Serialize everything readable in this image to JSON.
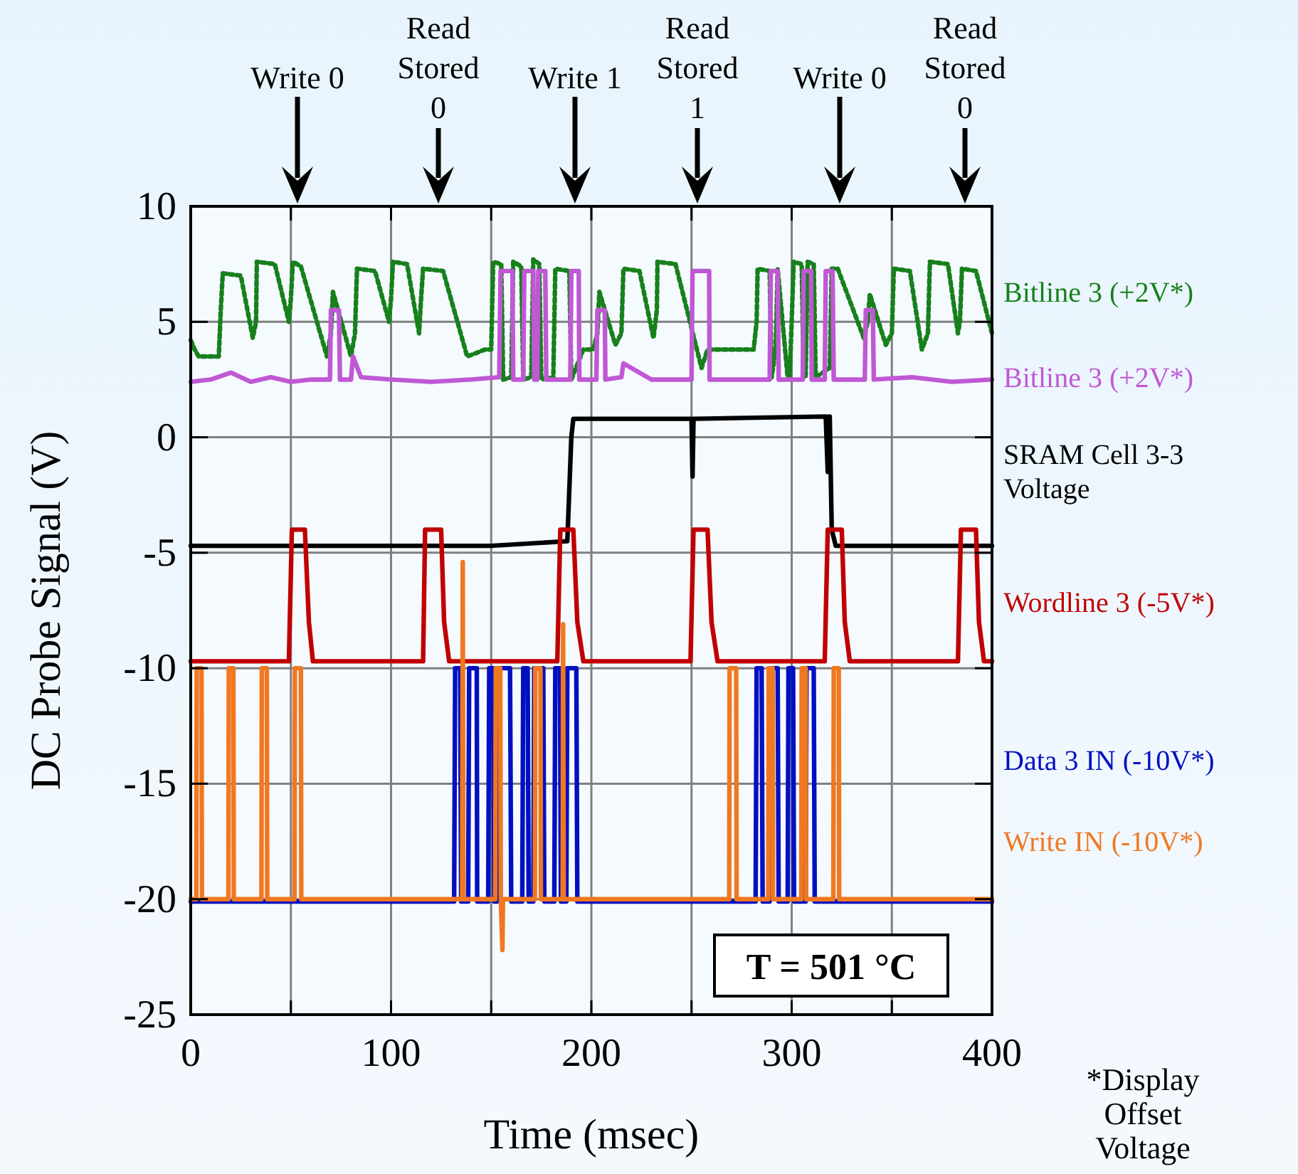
{
  "chart_data": {
    "type": "line",
    "xlabel": "Time (msec)",
    "ylabel": "DC Probe Signal (V)",
    "xlim": [
      0,
      400
    ],
    "xticks": [
      0,
      {
        "value": 50,
        "label": null
      },
      100,
      {
        "value": 150,
        "label": null
      },
      200,
      {
        "value": 250,
        "label": null
      },
      300,
      {
        "value": 350,
        "label": null
      },
      400
    ],
    "ylim": [
      -25,
      10
    ],
    "yticks": [
      -25,
      -20,
      -15,
      -10,
      -5,
      0,
      5,
      10
    ],
    "grid": true,
    "legend": "right",
    "marker": "none",
    "line_style": "solid",
    "series": [
      {
        "name": "Bitline 3 (+2V*)",
        "color": "#17801c",
        "line_style": "dotted",
        "x": [
          0,
          2,
          4,
          14,
          15,
          16,
          25,
          31,
          32.6,
          33,
          42,
          49,
          50,
          51,
          55,
          68,
          70,
          71,
          80,
          82,
          83,
          92,
          99,
          100,
          101,
          108,
          114,
          115,
          116,
          126,
          138,
          147,
          150,
          151,
          155,
          156,
          160,
          161,
          165,
          166,
          170,
          171,
          174,
          175,
          181,
          182,
          189,
          190,
          196,
          201,
          203,
          204,
          212,
          215,
          216,
          224,
          231,
          232.7,
          233,
          242,
          255,
          258,
          281,
          282.5,
          283,
          289,
          290,
          292,
          293,
          298,
          299,
          300,
          301,
          305,
          306,
          307,
          308,
          311,
          312,
          319,
          320,
          323,
          336,
          338,
          339,
          347,
          350,
          351,
          359,
          365,
          368,
          369,
          378,
          383,
          384,
          385,
          392,
          400
        ],
        "values": [
          4.2,
          3.8,
          3.5,
          3.5,
          5.5,
          7.1,
          7.0,
          4.3,
          5,
          7.6,
          7.5,
          5,
          6,
          7.6,
          7.4,
          3.5,
          4.5,
          6.3,
          3.5,
          4.5,
          7.3,
          7.2,
          5,
          6,
          7.6,
          7.5,
          4.5,
          6,
          7.3,
          7.2,
          3.5,
          3.8,
          3.8,
          7.6,
          7.5,
          2.5,
          2.6,
          7.6,
          7.4,
          2.5,
          2.6,
          7.7,
          7.5,
          2.5,
          2.6,
          7.3,
          7.2,
          2.5,
          3.8,
          3.8,
          4.5,
          6.3,
          4,
          4.5,
          7.3,
          7.2,
          4.3,
          5.5,
          7.6,
          7.5,
          3,
          3.8,
          3.8,
          5,
          7.3,
          7.2,
          2.6,
          3.8,
          7.3,
          2.6,
          2.6,
          5,
          7.6,
          7.5,
          2.6,
          2.6,
          7.6,
          7.5,
          2.6,
          3,
          7.3,
          7.3,
          4.3,
          5,
          6.2,
          4,
          4.5,
          7.3,
          7.2,
          3.8,
          4.5,
          7.6,
          7.5,
          4.5,
          5,
          7.3,
          7.2,
          4.5
        ]
      },
      {
        "name": "Bitline 3 (+2V*)",
        "color": "#c058d4",
        "x": [
          0,
          10,
          20,
          30,
          40,
          50,
          60,
          69.5,
          70,
          74,
          74.5,
          80,
          81,
          85,
          100,
          120,
          140,
          154,
          154.7,
          160.6,
          161,
          166,
          166.5,
          171,
          171.5,
          173,
          173.5,
          177,
          177.5,
          189.5,
          190,
          193.7,
          194,
          202.5,
          203,
          206.7,
          207,
          215,
          216,
          230,
          250,
          250.5,
          258.8,
          259,
          289,
          289.6,
          293,
          293.5,
          305.5,
          306,
          309.7,
          310,
          316.5,
          317,
          320.4,
          321,
          336.5,
          337,
          340.5,
          341,
          360,
          380,
          400
        ],
        "values": [
          2.4,
          2.5,
          2.8,
          2.4,
          2.6,
          2.4,
          2.5,
          2.5,
          5.5,
          5.5,
          2.5,
          2.5,
          3.5,
          2.6,
          2.5,
          2.4,
          2.5,
          2.6,
          7.2,
          7.2,
          2.5,
          2.5,
          7.2,
          7.2,
          2.5,
          2.5,
          7.2,
          7.2,
          2.5,
          2.5,
          7.2,
          7.2,
          2.5,
          2.5,
          5.5,
          5.5,
          2.5,
          2.6,
          3.2,
          2.5,
          2.5,
          7.2,
          7.2,
          2.5,
          2.5,
          7.2,
          7.2,
          2.5,
          2.5,
          7.2,
          7.2,
          2.5,
          2.5,
          7.2,
          7.2,
          2.5,
          2.5,
          5.5,
          5.5,
          2.5,
          2.6,
          2.4,
          2.5
        ]
      },
      {
        "name": "SRAM Cell 3-3\nVoltage",
        "color": "#000000",
        "x": [
          0,
          50,
          100,
          150,
          188,
          190,
          191,
          250,
          250.5,
          251,
          317,
          318,
          318.5,
          319,
          320,
          322,
          360,
          400
        ],
        "values": [
          -4.7,
          -4.7,
          -4.7,
          -4.7,
          -4.5,
          0,
          0.8,
          0.8,
          -1.7,
          0.8,
          0.9,
          -1.5,
          0.9,
          0.9,
          -4,
          -4.7,
          -4.7,
          -4.7
        ]
      },
      {
        "name": "Wordline 3 (-5V*)",
        "color": "#c00000",
        "x": [
          0,
          49,
          50.5,
          57,
          59,
          61,
          116,
          117,
          125,
          126.5,
          129,
          183,
          184.5,
          191,
          193,
          196,
          249.5,
          251,
          258,
          260,
          263,
          316.5,
          318,
          325,
          326.5,
          329,
          383,
          384.5,
          392,
          393.5,
          396,
          400
        ],
        "values": [
          -9.7,
          -9.7,
          -4,
          -4,
          -8,
          -9.7,
          -9.7,
          -4,
          -4,
          -8,
          -9.7,
          -9.7,
          -4,
          -4,
          -8,
          -9.7,
          -9.7,
          -4,
          -4,
          -8,
          -9.7,
          -9.7,
          -4,
          -4,
          -8,
          -9.7,
          -9.7,
          -4,
          -4,
          -8,
          -9.7,
          -9.7
        ]
      },
      {
        "name": "Data 3 IN (-10V*)",
        "color": "#0010c0",
        "x": [
          0,
          131.5,
          132,
          134.5,
          135,
          138.5,
          139,
          142.8,
          143,
          148.5,
          149,
          151,
          151.5,
          153,
          153.5,
          159.4,
          160,
          165.5,
          166,
          168.2,
          168.7,
          171,
          171.5,
          176,
          176.5,
          181.5,
          182,
          184.3,
          184.8,
          187.5,
          188,
          192.5,
          193,
          282,
          282.5,
          285,
          285.5,
          289,
          289.6,
          293,
          293.5,
          298,
          298.4,
          300.7,
          301.2,
          307,
          307.4,
          311,
          311.5,
          400
        ],
        "values": [
          -20.1,
          -20.1,
          -10,
          -10,
          -20.1,
          -20.1,
          -10,
          -10,
          -20.1,
          -20.1,
          -10,
          -10,
          -20.1,
          -20.1,
          -10,
          -10,
          -20.1,
          -20.1,
          -10,
          -10,
          -20.1,
          -20.1,
          -10,
          -10,
          -20.1,
          -20.1,
          -10,
          -10,
          -20.1,
          -20.1,
          -10,
          -10,
          -20.1,
          -20.1,
          -10,
          -10,
          -20.1,
          -20.1,
          -10,
          -10,
          -20.1,
          -20.1,
          -10,
          -10,
          -20.1,
          -20.1,
          -10,
          -10,
          -20.1,
          -20.1
        ]
      },
      {
        "name": "Write IN (-10V*)",
        "color": "#f07820",
        "x": [
          0,
          2.8,
          3,
          5.4,
          5.6,
          18.8,
          19,
          21.3,
          21.5,
          35.3,
          35.5,
          38,
          38.2,
          51.8,
          52,
          55,
          55.2,
          135.5,
          135.8,
          136.1,
          152,
          152.3,
          154.5,
          154.8,
          155.6,
          155.9,
          171.8,
          172,
          174.6,
          174.8,
          185.7,
          185.9,
          186.2,
          268.8,
          269,
          272.3,
          272.5,
          288.3,
          288.5,
          290.5,
          290.7,
          304.8,
          305,
          307,
          307.2,
          320.8,
          321,
          323.5,
          323.7,
          400
        ],
        "values": [
          -20,
          -20,
          -10,
          -10,
          -20,
          -20,
          -10,
          -10,
          -20,
          -20,
          -10,
          -10,
          -20,
          -20,
          -10,
          -10,
          -20,
          -20,
          -5.4,
          -20,
          -20,
          -10,
          -10,
          -20,
          -22.2,
          -20,
          -20,
          -10,
          -10,
          -20,
          -20,
          -8.1,
          -20,
          -20,
          -10,
          -10,
          -20,
          -20,
          -10,
          -10,
          -20,
          -20,
          -10,
          -10,
          -20,
          -20,
          -10,
          -10,
          -20,
          -20
        ]
      }
    ],
    "annotations": [
      "Write 0",
      "Read\nStored\n0",
      "Write 1",
      "Read\nStored\n1",
      "Write 0",
      "Read\nStored\n0",
      "T = 501 °C",
      "*Display\nOffset\nVoltage"
    ]
  }
}
